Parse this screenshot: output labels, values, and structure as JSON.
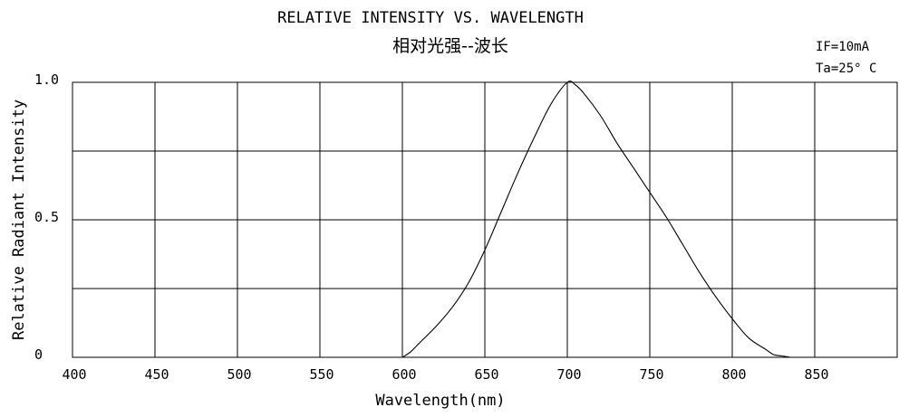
{
  "chart_data": {
    "type": "line",
    "title": "RELATIVE INTENSITY VS. WAVELENGTH",
    "subtitle": "相对光强--波长",
    "conditions": [
      "IF=10mA",
      "Ta=25° C"
    ],
    "xlabel": "Wavelength(nm)",
    "ylabel": "Relative Radiant Intensity",
    "xlim": [
      400,
      900
    ],
    "ylim": [
      0,
      1.0
    ],
    "x_ticks": [
      400,
      450,
      500,
      550,
      600,
      650,
      700,
      750,
      800,
      850
    ],
    "x_tick_labels": [
      "400",
      "450",
      "500",
      "550",
      "600",
      "650",
      "700",
      "750",
      "800",
      "850"
    ],
    "y_ticks": [
      0,
      0.5,
      1.0
    ],
    "y_tick_labels": [
      "0",
      "0.5",
      "1.0"
    ],
    "grid": true,
    "series": [
      {
        "x": [
          600,
          605,
          610,
          620,
          630,
          640,
          650,
          660,
          670,
          680,
          690,
          700,
          705,
          710,
          720,
          730,
          740,
          750,
          760,
          770,
          780,
          790,
          800,
          810,
          820,
          825,
          830,
          835
        ],
        "y": [
          0.0,
          0.02,
          0.05,
          0.11,
          0.18,
          0.27,
          0.39,
          0.53,
          0.67,
          0.8,
          0.92,
          1.0,
          0.99,
          0.96,
          0.88,
          0.78,
          0.69,
          0.6,
          0.51,
          0.41,
          0.31,
          0.22,
          0.14,
          0.07,
          0.03,
          0.01,
          0.005,
          0.0
        ]
      }
    ]
  }
}
